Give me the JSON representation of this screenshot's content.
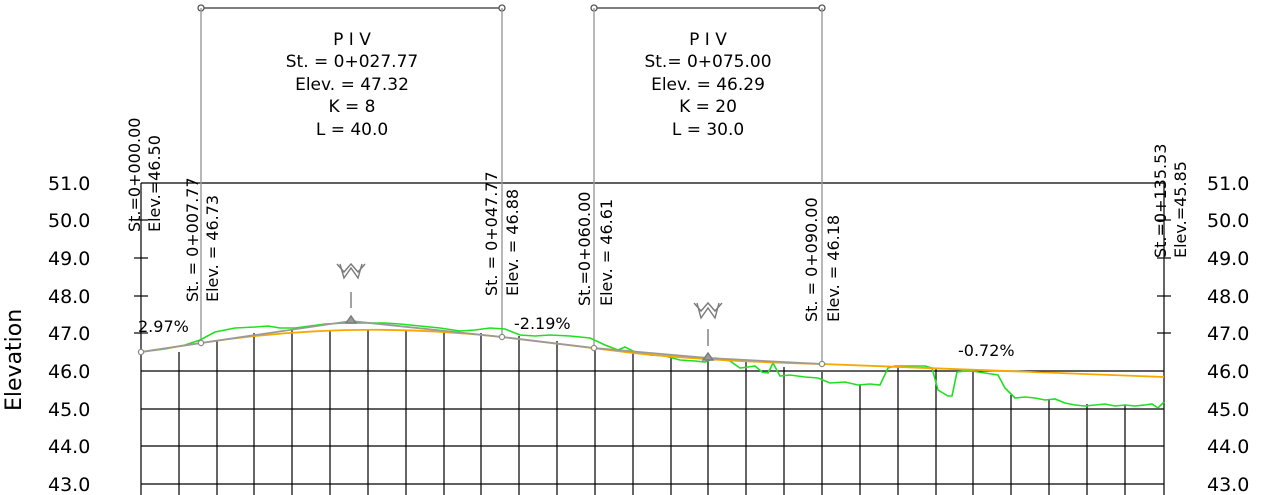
{
  "axis": {
    "title": "Elevation",
    "ticks": [
      "51.0",
      "50.0",
      "49.0",
      "48.0",
      "47.0",
      "46.0",
      "45.0",
      "44.0",
      "43.0"
    ]
  },
  "pvi_blocks": [
    {
      "title": "P  I  V",
      "station": "St.  =  0+027.77",
      "elevation": "Elev.  =  47.32",
      "k": "K  =  8",
      "length": "L  =  40.0"
    },
    {
      "title": "P  I  V",
      "station": "St.=  0+075.00",
      "elevation": "Elev.  =  46.29",
      "k": "K  =  20",
      "length": "L  =  30.0"
    }
  ],
  "station_labels": [
    {
      "station": "St.=0+000.00",
      "elevation": "Elev.=46.50"
    },
    {
      "station": "St.  =  0+007.77",
      "elevation": "Elev.  =  46.73"
    },
    {
      "station": "St.  =  0+047.77",
      "elevation": "Elev.  =  46.88"
    },
    {
      "station": "St.=0+060.00",
      "elevation": "Elev.  =  46.61"
    },
    {
      "station": "St.  =  0+090.00",
      "elevation": "Elev.  =  46.18"
    },
    {
      "station": "St.=0+135.53",
      "elevation": "Elev.=45.85"
    }
  ],
  "grades": [
    "2.97%",
    "-2.19%",
    "-0.72%"
  ],
  "icons": [
    "pvi-marker-icon",
    "pvi-marker-icon"
  ],
  "colors": {
    "design_line": "#f5a800",
    "ground_line": "#1fe01f",
    "callout": "#9a9a9a",
    "grid": "#000000"
  }
}
